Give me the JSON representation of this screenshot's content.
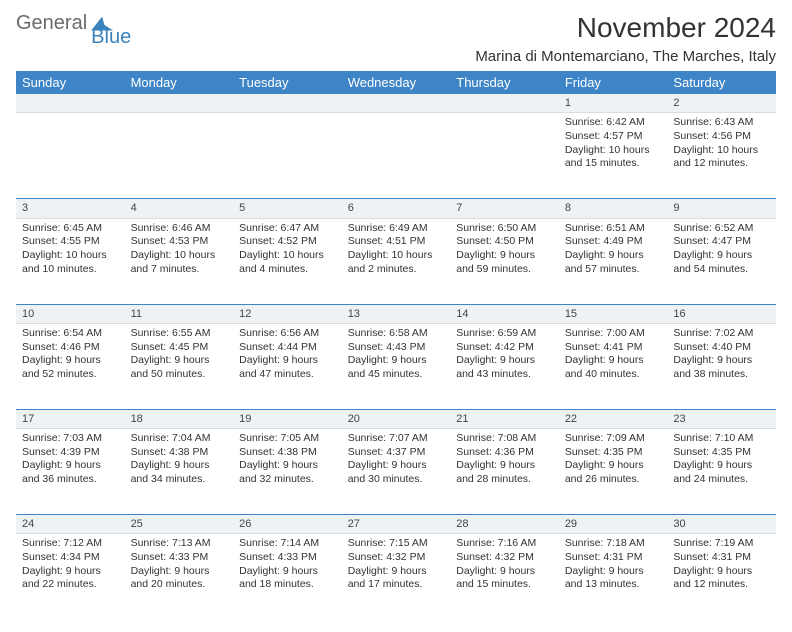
{
  "logo": {
    "part1": "General",
    "part2": "Blue"
  },
  "title": "November 2024",
  "location": "Marina di Montemarciano, The Marches, Italy",
  "colors": {
    "header_bg": "#3d85c6",
    "header_text": "#ffffff",
    "daynum_bg": "#eef2f5",
    "rule": "#3d85c6",
    "text": "#333333",
    "logo_gray": "#6b6b6b",
    "logo_blue": "#3b83bd"
  },
  "fonts": {
    "title_pt": 28,
    "location_pt": 15,
    "header_pt": 13,
    "daynum_pt": 11,
    "cell_pt": 10.5
  },
  "weekdays": [
    "Sunday",
    "Monday",
    "Tuesday",
    "Wednesday",
    "Thursday",
    "Friday",
    "Saturday"
  ],
  "weeks": [
    [
      null,
      null,
      null,
      null,
      null,
      {
        "n": "1",
        "sr": "Sunrise: 6:42 AM",
        "ss": "Sunset: 4:57 PM",
        "d1": "Daylight: 10 hours",
        "d2": "and 15 minutes."
      },
      {
        "n": "2",
        "sr": "Sunrise: 6:43 AM",
        "ss": "Sunset: 4:56 PM",
        "d1": "Daylight: 10 hours",
        "d2": "and 12 minutes."
      }
    ],
    [
      {
        "n": "3",
        "sr": "Sunrise: 6:45 AM",
        "ss": "Sunset: 4:55 PM",
        "d1": "Daylight: 10 hours",
        "d2": "and 10 minutes."
      },
      {
        "n": "4",
        "sr": "Sunrise: 6:46 AM",
        "ss": "Sunset: 4:53 PM",
        "d1": "Daylight: 10 hours",
        "d2": "and 7 minutes."
      },
      {
        "n": "5",
        "sr": "Sunrise: 6:47 AM",
        "ss": "Sunset: 4:52 PM",
        "d1": "Daylight: 10 hours",
        "d2": "and 4 minutes."
      },
      {
        "n": "6",
        "sr": "Sunrise: 6:49 AM",
        "ss": "Sunset: 4:51 PM",
        "d1": "Daylight: 10 hours",
        "d2": "and 2 minutes."
      },
      {
        "n": "7",
        "sr": "Sunrise: 6:50 AM",
        "ss": "Sunset: 4:50 PM",
        "d1": "Daylight: 9 hours",
        "d2": "and 59 minutes."
      },
      {
        "n": "8",
        "sr": "Sunrise: 6:51 AM",
        "ss": "Sunset: 4:49 PM",
        "d1": "Daylight: 9 hours",
        "d2": "and 57 minutes."
      },
      {
        "n": "9",
        "sr": "Sunrise: 6:52 AM",
        "ss": "Sunset: 4:47 PM",
        "d1": "Daylight: 9 hours",
        "d2": "and 54 minutes."
      }
    ],
    [
      {
        "n": "10",
        "sr": "Sunrise: 6:54 AM",
        "ss": "Sunset: 4:46 PM",
        "d1": "Daylight: 9 hours",
        "d2": "and 52 minutes."
      },
      {
        "n": "11",
        "sr": "Sunrise: 6:55 AM",
        "ss": "Sunset: 4:45 PM",
        "d1": "Daylight: 9 hours",
        "d2": "and 50 minutes."
      },
      {
        "n": "12",
        "sr": "Sunrise: 6:56 AM",
        "ss": "Sunset: 4:44 PM",
        "d1": "Daylight: 9 hours",
        "d2": "and 47 minutes."
      },
      {
        "n": "13",
        "sr": "Sunrise: 6:58 AM",
        "ss": "Sunset: 4:43 PM",
        "d1": "Daylight: 9 hours",
        "d2": "and 45 minutes."
      },
      {
        "n": "14",
        "sr": "Sunrise: 6:59 AM",
        "ss": "Sunset: 4:42 PM",
        "d1": "Daylight: 9 hours",
        "d2": "and 43 minutes."
      },
      {
        "n": "15",
        "sr": "Sunrise: 7:00 AM",
        "ss": "Sunset: 4:41 PM",
        "d1": "Daylight: 9 hours",
        "d2": "and 40 minutes."
      },
      {
        "n": "16",
        "sr": "Sunrise: 7:02 AM",
        "ss": "Sunset: 4:40 PM",
        "d1": "Daylight: 9 hours",
        "d2": "and 38 minutes."
      }
    ],
    [
      {
        "n": "17",
        "sr": "Sunrise: 7:03 AM",
        "ss": "Sunset: 4:39 PM",
        "d1": "Daylight: 9 hours",
        "d2": "and 36 minutes."
      },
      {
        "n": "18",
        "sr": "Sunrise: 7:04 AM",
        "ss": "Sunset: 4:38 PM",
        "d1": "Daylight: 9 hours",
        "d2": "and 34 minutes."
      },
      {
        "n": "19",
        "sr": "Sunrise: 7:05 AM",
        "ss": "Sunset: 4:38 PM",
        "d1": "Daylight: 9 hours",
        "d2": "and 32 minutes."
      },
      {
        "n": "20",
        "sr": "Sunrise: 7:07 AM",
        "ss": "Sunset: 4:37 PM",
        "d1": "Daylight: 9 hours",
        "d2": "and 30 minutes."
      },
      {
        "n": "21",
        "sr": "Sunrise: 7:08 AM",
        "ss": "Sunset: 4:36 PM",
        "d1": "Daylight: 9 hours",
        "d2": "and 28 minutes."
      },
      {
        "n": "22",
        "sr": "Sunrise: 7:09 AM",
        "ss": "Sunset: 4:35 PM",
        "d1": "Daylight: 9 hours",
        "d2": "and 26 minutes."
      },
      {
        "n": "23",
        "sr": "Sunrise: 7:10 AM",
        "ss": "Sunset: 4:35 PM",
        "d1": "Daylight: 9 hours",
        "d2": "and 24 minutes."
      }
    ],
    [
      {
        "n": "24",
        "sr": "Sunrise: 7:12 AM",
        "ss": "Sunset: 4:34 PM",
        "d1": "Daylight: 9 hours",
        "d2": "and 22 minutes."
      },
      {
        "n": "25",
        "sr": "Sunrise: 7:13 AM",
        "ss": "Sunset: 4:33 PM",
        "d1": "Daylight: 9 hours",
        "d2": "and 20 minutes."
      },
      {
        "n": "26",
        "sr": "Sunrise: 7:14 AM",
        "ss": "Sunset: 4:33 PM",
        "d1": "Daylight: 9 hours",
        "d2": "and 18 minutes."
      },
      {
        "n": "27",
        "sr": "Sunrise: 7:15 AM",
        "ss": "Sunset: 4:32 PM",
        "d1": "Daylight: 9 hours",
        "d2": "and 17 minutes."
      },
      {
        "n": "28",
        "sr": "Sunrise: 7:16 AM",
        "ss": "Sunset: 4:32 PM",
        "d1": "Daylight: 9 hours",
        "d2": "and 15 minutes."
      },
      {
        "n": "29",
        "sr": "Sunrise: 7:18 AM",
        "ss": "Sunset: 4:31 PM",
        "d1": "Daylight: 9 hours",
        "d2": "and 13 minutes."
      },
      {
        "n": "30",
        "sr": "Sunrise: 7:19 AM",
        "ss": "Sunset: 4:31 PM",
        "d1": "Daylight: 9 hours",
        "d2": "and 12 minutes."
      }
    ]
  ]
}
